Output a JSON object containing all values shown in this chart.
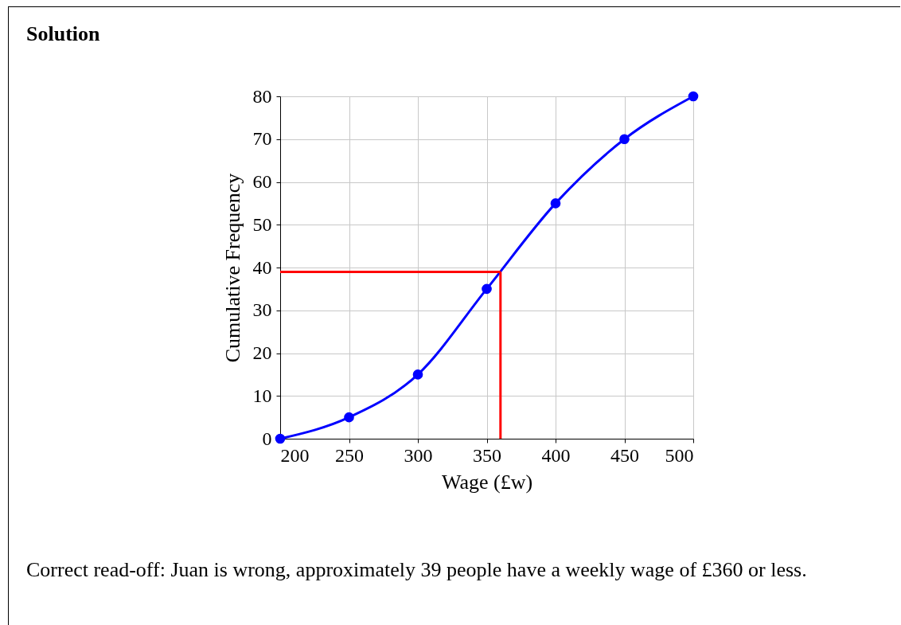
{
  "chart_data": {
    "type": "line",
    "title": "Solution",
    "xlabel": "Wage (£w)",
    "ylabel": "Cumulative Frequency",
    "x": [
      200,
      250,
      300,
      350,
      400,
      450,
      500
    ],
    "series": [
      {
        "color": "#0000ff",
        "values": [
          0,
          5,
          15,
          35,
          55,
          70,
          80
        ]
      }
    ],
    "xlim": [
      200,
      500
    ],
    "xticks": [
      200,
      250,
      300,
      350,
      400,
      450,
      500
    ],
    "ylim": [
      0,
      80
    ],
    "yticks": [
      0,
      10,
      20,
      30,
      40,
      50,
      60,
      70,
      80
    ],
    "grid": true,
    "marker": "circle",
    "line_style": "solid",
    "ref_lines": [
      {
        "axis": "x",
        "value": 360,
        "color": "#ff0000"
      },
      {
        "axis": "y",
        "value": 39,
        "color": "#ff0000"
      }
    ],
    "annotations": [
      "Correct read-off: Juan is wrong, approximately 39 people have a weekly wage of £360 or less."
    ]
  }
}
